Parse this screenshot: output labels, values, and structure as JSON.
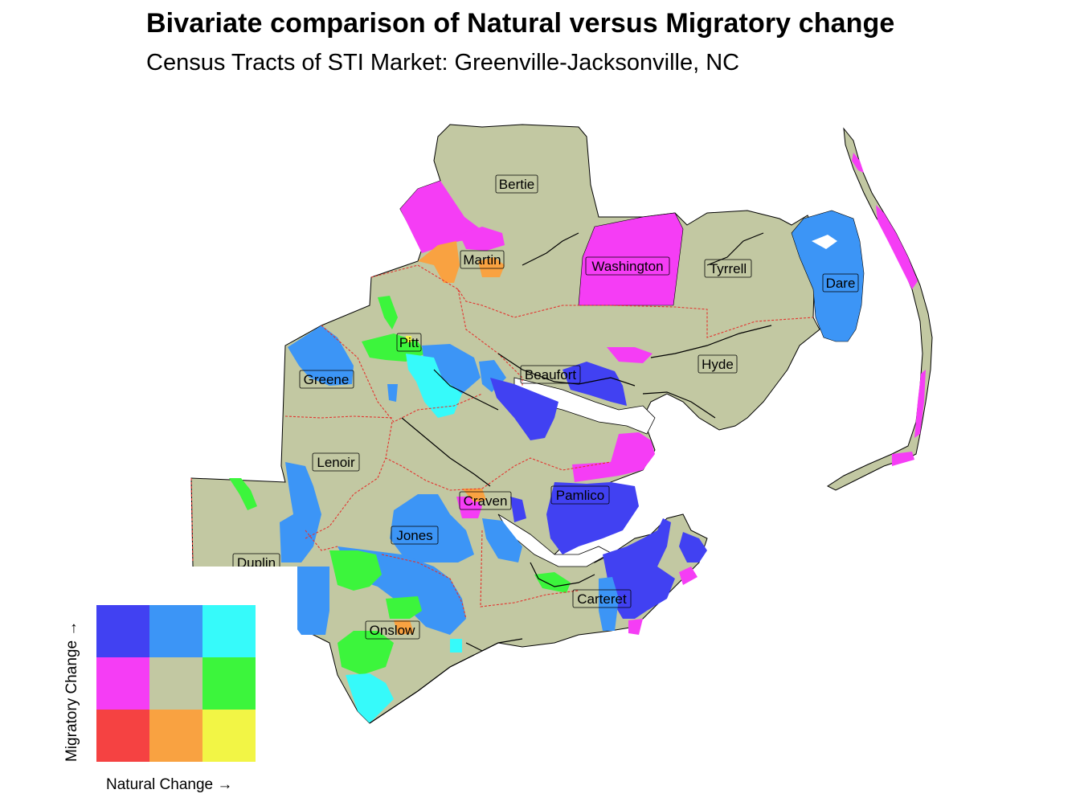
{
  "title": "Bivariate comparison of Natural versus Migratory change",
  "subtitle": "Census Tracts of STI Market: Greenville-Jacksonville, NC",
  "colors": {
    "background": "#ffffff",
    "base_land": "#c2c8a2",
    "county_border": "#e3342f",
    "outline": "#000000"
  },
  "legend": {
    "x_label": "Natural Change →",
    "y_label": "Migratory Change →",
    "grid": [
      [
        "#4141f2",
        "#3c95f6",
        "#36fafa"
      ],
      [
        "#f53df5",
        "#c2c8a2",
        "#3cf53c"
      ],
      [
        "#f54242",
        "#f9a241",
        "#f2f545"
      ]
    ]
  },
  "counties": [
    {
      "name": "Bertie"
    },
    {
      "name": "Martin"
    },
    {
      "name": "Washington"
    },
    {
      "name": "Tyrrell"
    },
    {
      "name": "Dare"
    },
    {
      "name": "Pitt"
    },
    {
      "name": "Greene"
    },
    {
      "name": "Beaufort"
    },
    {
      "name": "Hyde"
    },
    {
      "name": "Lenoir"
    },
    {
      "name": "Craven"
    },
    {
      "name": "Pamlico"
    },
    {
      "name": "Jones"
    },
    {
      "name": "Duplin"
    },
    {
      "name": "Carteret"
    },
    {
      "name": "Onslow"
    }
  ]
}
